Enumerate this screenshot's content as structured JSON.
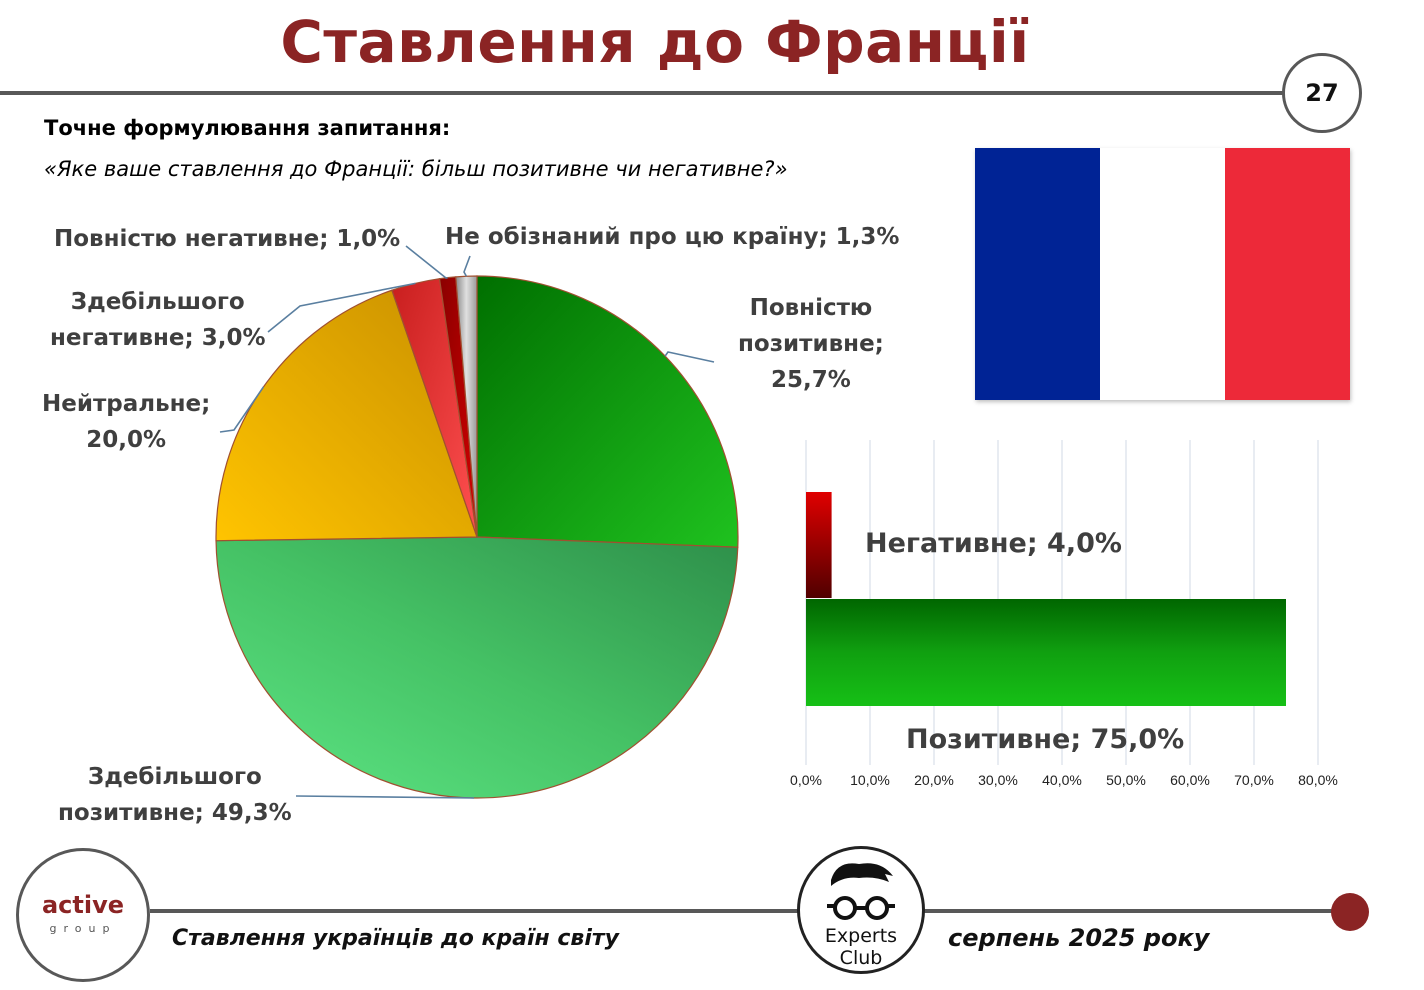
{
  "header": {
    "title": "Ставлення до Франції",
    "page_number": "27"
  },
  "question": {
    "label": "Точне формулювання запитання:",
    "text": "«Яке ваше ставлення до Франції: більш позитивне чи негативне?»"
  },
  "flag": {
    "colors": [
      "#002395",
      "#ffffff",
      "#ED2939"
    ]
  },
  "chart_data": [
    {
      "type": "pie",
      "slices": [
        {
          "label_lines": [
            "Повністю",
            "позитивне;",
            "25,7%"
          ],
          "name": "Повністю позитивне",
          "value": 25.7,
          "color": "#18a818"
        },
        {
          "label_lines": [
            "Здебільшого",
            "позитивне; 49,3%"
          ],
          "name": "Здебільшого позитивне",
          "value": 49.3,
          "color": "#48c868"
        },
        {
          "label_lines": [
            "Нейтральне;",
            "20,0%"
          ],
          "name": "Нейтральне",
          "value": 20.0,
          "color": "#f0b000"
        },
        {
          "label_lines": [
            "Здебільшого",
            "негативне; 3,0%"
          ],
          "name": "Здебільшого негативне",
          "value": 3.0,
          "color": "#e03030"
        },
        {
          "label_lines": [
            "Повністю негативне; 1,0%"
          ],
          "name": "Повністю негативне",
          "value": 1.0,
          "color": "#b00000"
        },
        {
          "label_lines": [
            "Не обізнаний про цю країну; 1,3%"
          ],
          "name": "Не обізнаний про цю країну",
          "value": 1.3,
          "color": "#a8a8a8"
        }
      ]
    },
    {
      "type": "bar",
      "orientation": "horizontal",
      "categories": [
        "Негативне",
        "Позитивне"
      ],
      "values": [
        4.0,
        75.0
      ],
      "labels": [
        "Негативне; 4,0%",
        "Позитивне; 75,0%"
      ],
      "colors": [
        "#c00000",
        "#10a010"
      ],
      "xlim": [
        0,
        80
      ],
      "x_ticks": [
        "0,0%",
        "10,0%",
        "20,0%",
        "30,0%",
        "40,0%",
        "50,0%",
        "60,0%",
        "70,0%",
        "80,0%"
      ],
      "grid": true
    }
  ],
  "footer": {
    "left_text": "Ставлення українців до країн світу",
    "right_text": "серпень 2025 року",
    "logo_left": {
      "name": "active",
      "sub": "group"
    },
    "logo_right": {
      "line1": "Experts",
      "line2": "Club"
    }
  }
}
